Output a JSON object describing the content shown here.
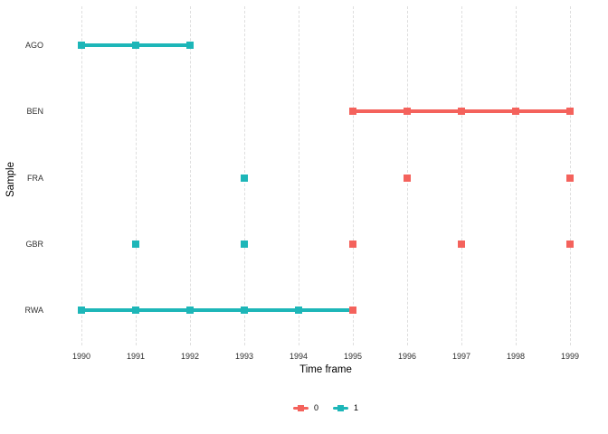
{
  "chart_data": {
    "type": "scatter",
    "title": "",
    "xlabel": "Time frame",
    "ylabel": "Sample",
    "x_ticks": [
      "1990",
      "1991",
      "1992",
      "1993",
      "1994",
      "1995",
      "1996",
      "1997",
      "1998",
      "1999"
    ],
    "x_range": [
      1990,
      1999
    ],
    "y_categories": [
      "AGO",
      "BEN",
      "FRA",
      "GBR",
      "RWA"
    ],
    "grid": {
      "vertical": "dashed",
      "horizontal": "none",
      "gridline_color": "#dedede"
    },
    "groups": {
      "0": {
        "color": "#f4625c"
      },
      "1": {
        "color": "#1db6b8"
      }
    },
    "segments": [
      {
        "sample": "AGO",
        "start": 1990,
        "end": 1992,
        "group": "1"
      },
      {
        "sample": "BEN",
        "start": 1995,
        "end": 1999,
        "group": "0"
      },
      {
        "sample": "RWA",
        "start": 1990,
        "end": 1995,
        "group": "1"
      }
    ],
    "points": [
      {
        "sample": "AGO",
        "year": 1990,
        "group": "1"
      },
      {
        "sample": "AGO",
        "year": 1991,
        "group": "1"
      },
      {
        "sample": "AGO",
        "year": 1992,
        "group": "1"
      },
      {
        "sample": "BEN",
        "year": 1995,
        "group": "0"
      },
      {
        "sample": "BEN",
        "year": 1996,
        "group": "0"
      },
      {
        "sample": "BEN",
        "year": 1997,
        "group": "0"
      },
      {
        "sample": "BEN",
        "year": 1998,
        "group": "0"
      },
      {
        "sample": "BEN",
        "year": 1999,
        "group": "0"
      },
      {
        "sample": "FRA",
        "year": 1993,
        "group": "1"
      },
      {
        "sample": "FRA",
        "year": 1996,
        "group": "0"
      },
      {
        "sample": "FRA",
        "year": 1999,
        "group": "0"
      },
      {
        "sample": "GBR",
        "year": 1991,
        "group": "1"
      },
      {
        "sample": "GBR",
        "year": 1993,
        "group": "1"
      },
      {
        "sample": "GBR",
        "year": 1995,
        "group": "0"
      },
      {
        "sample": "GBR",
        "year": 1997,
        "group": "0"
      },
      {
        "sample": "GBR",
        "year": 1999,
        "group": "0"
      },
      {
        "sample": "RWA",
        "year": 1990,
        "group": "1"
      },
      {
        "sample": "RWA",
        "year": 1991,
        "group": "1"
      },
      {
        "sample": "RWA",
        "year": 1992,
        "group": "1"
      },
      {
        "sample": "RWA",
        "year": 1993,
        "group": "1"
      },
      {
        "sample": "RWA",
        "year": 1994,
        "group": "1"
      },
      {
        "sample": "RWA",
        "year": 1995,
        "group": "0"
      }
    ],
    "legend": {
      "position": "bottom",
      "entries": [
        {
          "label": "0"
        },
        {
          "label": "1"
        }
      ]
    }
  }
}
